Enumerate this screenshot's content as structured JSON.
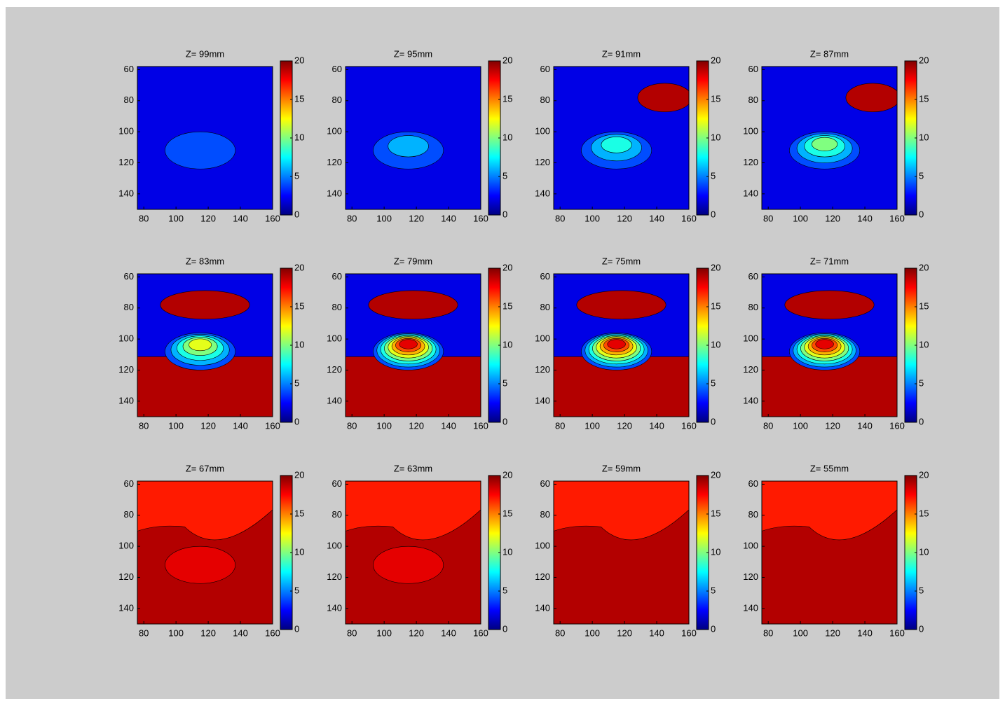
{
  "chart_data": [
    {
      "type": "contour",
      "title": "Z= 99mm",
      "xlim": [
        76,
        160
      ],
      "ylim": [
        58,
        150
      ],
      "xticks": [
        80,
        100,
        120,
        140,
        160
      ],
      "yticks": [
        60,
        80,
        100,
        120,
        140
      ],
      "clim": [
        0,
        20
      ],
      "cticks": [
        0,
        5,
        10,
        15,
        20
      ],
      "background": 2,
      "levels": [
        4
      ]
    },
    {
      "type": "contour",
      "title": "Z= 95mm",
      "xlim": [
        76,
        160
      ],
      "ylim": [
        58,
        150
      ],
      "xticks": [
        80,
        100,
        120,
        140,
        160
      ],
      "yticks": [
        60,
        80,
        100,
        120,
        140
      ],
      "clim": [
        0,
        20
      ],
      "cticks": [
        0,
        5,
        10,
        15,
        20
      ],
      "background": 2,
      "levels": [
        4,
        6
      ]
    },
    {
      "type": "contour",
      "title": "Z= 91mm",
      "xlim": [
        76,
        160
      ],
      "ylim": [
        58,
        150
      ],
      "xticks": [
        80,
        100,
        120,
        140,
        160
      ],
      "yticks": [
        60,
        80,
        100,
        120,
        140
      ],
      "clim": [
        0,
        20
      ],
      "cticks": [
        0,
        5,
        10,
        15,
        20
      ],
      "background": 2,
      "levels": [
        4,
        6,
        8
      ],
      "hot": 19
    },
    {
      "type": "contour",
      "title": "Z= 87mm",
      "xlim": [
        76,
        160
      ],
      "ylim": [
        58,
        150
      ],
      "xticks": [
        80,
        100,
        120,
        140,
        160
      ],
      "yticks": [
        60,
        80,
        100,
        120,
        140
      ],
      "clim": [
        0,
        20
      ],
      "cticks": [
        0,
        5,
        10,
        15,
        20
      ],
      "background": 2,
      "levels": [
        4,
        6,
        8,
        10
      ],
      "hot": 19
    },
    {
      "type": "contour",
      "title": "Z= 83mm",
      "xlim": [
        76,
        160
      ],
      "ylim": [
        58,
        150
      ],
      "xticks": [
        80,
        100,
        120,
        140,
        160
      ],
      "yticks": [
        60,
        80,
        100,
        120,
        140
      ],
      "clim": [
        0,
        20
      ],
      "cticks": [
        0,
        5,
        10,
        15,
        20
      ],
      "background": 2,
      "levels": [
        4,
        6,
        8,
        10,
        12
      ],
      "hot": 19,
      "lower": 19
    },
    {
      "type": "contour",
      "title": "Z= 79mm",
      "xlim": [
        76,
        160
      ],
      "ylim": [
        58,
        150
      ],
      "xticks": [
        80,
        100,
        120,
        140,
        160
      ],
      "yticks": [
        60,
        80,
        100,
        120,
        140
      ],
      "clim": [
        0,
        20
      ],
      "cticks": [
        0,
        5,
        10,
        15,
        20
      ],
      "background": 2,
      "levels": [
        4,
        6,
        8,
        10,
        12,
        14,
        16,
        18
      ],
      "hot": 19,
      "lower": 19
    },
    {
      "type": "contour",
      "title": "Z= 75mm",
      "xlim": [
        76,
        160
      ],
      "ylim": [
        58,
        150
      ],
      "xticks": [
        80,
        100,
        120,
        140,
        160
      ],
      "yticks": [
        60,
        80,
        100,
        120,
        140
      ],
      "clim": [
        0,
        20
      ],
      "cticks": [
        0,
        5,
        10,
        15,
        20
      ],
      "background": 2,
      "levels": [
        4,
        6,
        8,
        10,
        12,
        14,
        16,
        18
      ],
      "hot": 19,
      "lower": 19
    },
    {
      "type": "contour",
      "title": "Z= 71mm",
      "xlim": [
        76,
        160
      ],
      "ylim": [
        58,
        150
      ],
      "xticks": [
        80,
        100,
        120,
        140,
        160
      ],
      "yticks": [
        60,
        80,
        100,
        120,
        140
      ],
      "clim": [
        0,
        20
      ],
      "cticks": [
        0,
        5,
        10,
        15,
        20
      ],
      "background": 2,
      "levels": [
        4,
        6,
        8,
        10,
        12,
        14,
        16,
        18
      ],
      "hot": 19,
      "lower": 19
    },
    {
      "type": "contour",
      "title": "Z= 67mm",
      "xlim": [
        76,
        160
      ],
      "ylim": [
        58,
        150
      ],
      "xticks": [
        80,
        100,
        120,
        140,
        160
      ],
      "yticks": [
        60,
        80,
        100,
        120,
        140
      ],
      "clim": [
        0,
        20
      ],
      "cticks": [
        0,
        5,
        10,
        15,
        20
      ],
      "background": 19,
      "upper": 17,
      "levels": [
        18
      ]
    },
    {
      "type": "contour",
      "title": "Z= 63mm",
      "xlim": [
        76,
        160
      ],
      "ylim": [
        58,
        150
      ],
      "xticks": [
        80,
        100,
        120,
        140,
        160
      ],
      "yticks": [
        60,
        80,
        100,
        120,
        140
      ],
      "clim": [
        0,
        20
      ],
      "cticks": [
        0,
        5,
        10,
        15,
        20
      ],
      "background": 19,
      "upper": 17,
      "levels": [
        18
      ]
    },
    {
      "type": "contour",
      "title": "Z= 59mm",
      "xlim": [
        76,
        160
      ],
      "ylim": [
        58,
        150
      ],
      "xticks": [
        80,
        100,
        120,
        140,
        160
      ],
      "yticks": [
        60,
        80,
        100,
        120,
        140
      ],
      "clim": [
        0,
        20
      ],
      "cticks": [
        0,
        5,
        10,
        15,
        20
      ],
      "background": 19,
      "upper": 17,
      "levels": []
    },
    {
      "type": "contour",
      "title": "Z= 55mm",
      "xlim": [
        76,
        160
      ],
      "ylim": [
        58,
        150
      ],
      "xticks": [
        80,
        100,
        120,
        140,
        160
      ],
      "yticks": [
        60,
        80,
        100,
        120,
        140
      ],
      "clim": [
        0,
        20
      ],
      "cticks": [
        0,
        5,
        10,
        15,
        20
      ],
      "background": 19,
      "upper": 17,
      "levels": []
    }
  ]
}
